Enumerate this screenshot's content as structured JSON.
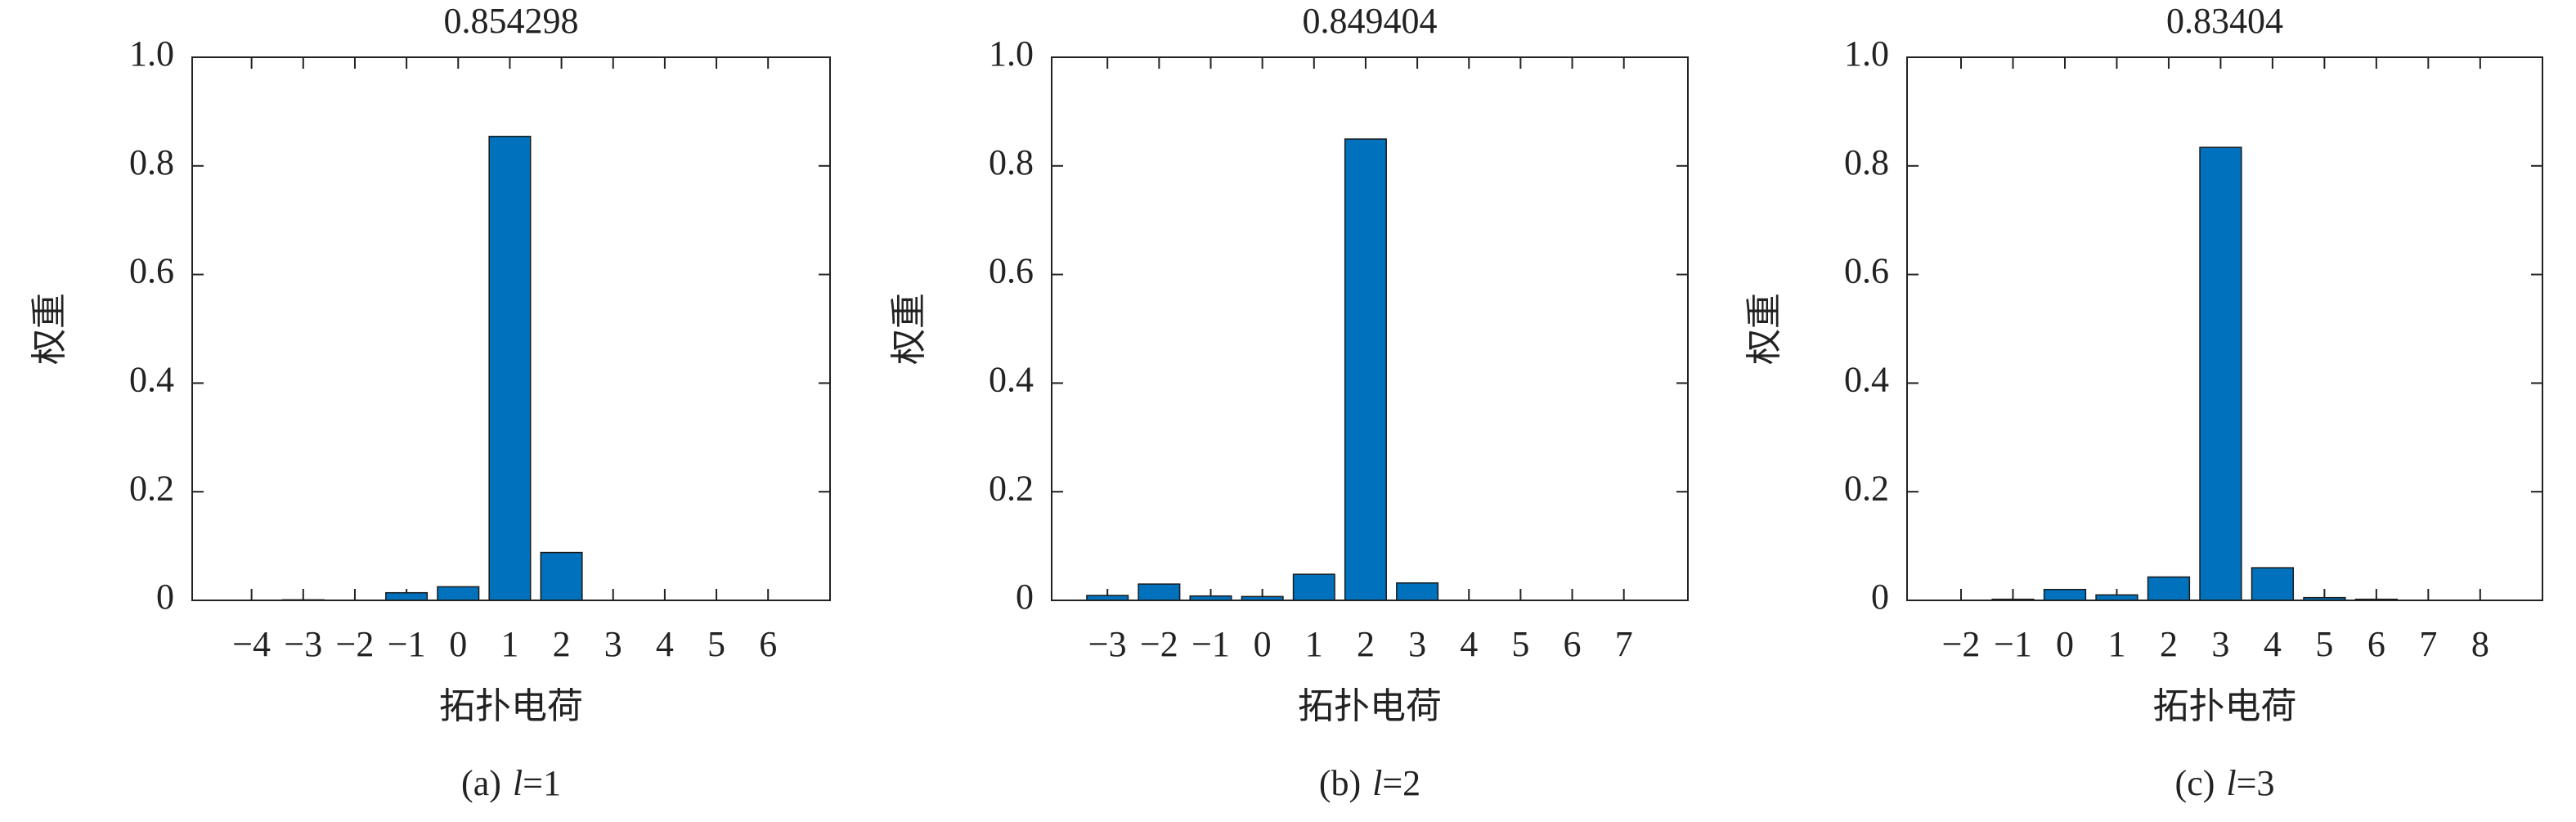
{
  "chart_data": [
    {
      "type": "bar",
      "title": "0.854298",
      "ylabel": "权重",
      "xlabel": "拓扑电荷",
      "caption_label": "(a)",
      "caption_var": "l",
      "caption_eq": "=1",
      "color": "#0072bd",
      "x": [
        -4,
        -3,
        -2,
        -1,
        0,
        1,
        2,
        3,
        4,
        5,
        6
      ],
      "values": [
        0,
        0.001,
        0,
        0.014,
        0.025,
        0.854298,
        0.088,
        0,
        0,
        0,
        0
      ],
      "xlim": [
        -5.15,
        7.2
      ],
      "ylim": [
        0,
        1
      ],
      "xticks": [
        {
          "value": -4,
          "label": "−4"
        },
        {
          "value": -3,
          "label": "−3"
        },
        {
          "value": -2,
          "label": "−2"
        },
        {
          "value": -1,
          "label": "−1"
        },
        0,
        1,
        2,
        3,
        4,
        5,
        6
      ],
      "yticks": [
        0,
        0.2,
        0.4,
        0.6,
        0.8,
        {
          "value": 1,
          "label": "1.0"
        }
      ]
    },
    {
      "type": "bar",
      "title": "0.849404",
      "ylabel": "权重",
      "xlabel": "拓扑电荷",
      "caption_label": "(b)",
      "caption_var": "l",
      "caption_eq": "=2",
      "color": "#0072bd",
      "x": [
        -3,
        -2,
        -1,
        0,
        1,
        2,
        3,
        4,
        5,
        6,
        7
      ],
      "values": [
        0.009,
        0.03,
        0.008,
        0.007,
        0.048,
        0.849404,
        0.032,
        0,
        0,
        0,
        0
      ],
      "xlim": [
        -4.08,
        8.24
      ],
      "ylim": [
        0,
        1
      ],
      "xticks": [
        {
          "value": -3,
          "label": "−3"
        },
        {
          "value": -2,
          "label": "−2"
        },
        {
          "value": -1,
          "label": "−1"
        },
        0,
        1,
        2,
        3,
        4,
        5,
        6,
        7
      ],
      "yticks": [
        0,
        0.2,
        0.4,
        0.6,
        0.8,
        {
          "value": 1,
          "label": "1.0"
        }
      ]
    },
    {
      "type": "bar",
      "title": "0.83404",
      "ylabel": "权重",
      "xlabel": "拓扑电荷",
      "caption_label": "(c)",
      "caption_var": "l",
      "caption_eq": "=3",
      "color": "#0072bd",
      "x": [
        -2,
        -1,
        0,
        1,
        2,
        3,
        4,
        5,
        6,
        7,
        8
      ],
      "values": [
        0,
        0.002,
        0.02,
        0.01,
        0.043,
        0.83404,
        0.06,
        0.005,
        0.002,
        0,
        0
      ],
      "xlim": [
        -3.04,
        9.2
      ],
      "ylim": [
        0,
        1
      ],
      "xticks": [
        {
          "value": -2,
          "label": "−2"
        },
        {
          "value": -1,
          "label": "−1"
        },
        0,
        1,
        2,
        3,
        4,
        5,
        6,
        7,
        8
      ],
      "yticks": [
        0,
        0.2,
        0.4,
        0.6,
        0.8,
        {
          "value": 1,
          "label": "1.0"
        }
      ]
    }
  ]
}
